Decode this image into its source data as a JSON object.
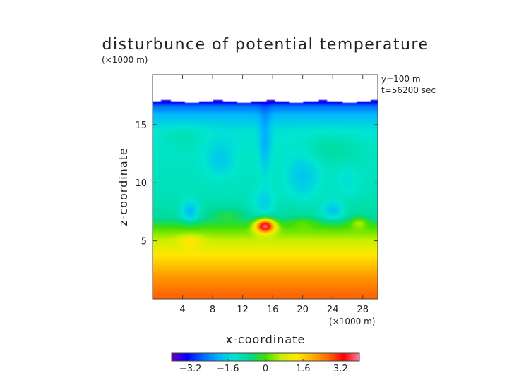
{
  "chart_data": {
    "type": "heatmap",
    "title": "disturbunce of potential temperature",
    "xlabel": "x-coordinate",
    "ylabel": "z-coordinate",
    "x_unit": "(×1000 m)",
    "y_unit": "(×1000 m)",
    "annotations": [
      "y=100 m",
      "t=56200 sec"
    ],
    "xlim": [
      0,
      30
    ],
    "ylim": [
      0,
      19.3
    ],
    "x_ticks": [
      4,
      8,
      12,
      16,
      20,
      24,
      28
    ],
    "y_ticks": [
      5,
      10,
      15
    ],
    "field_top": 17.0,
    "colorbar": {
      "min": -4.0,
      "max": 4.0,
      "ticks": [
        -3.2,
        -1.6,
        0,
        1.6,
        3.2
      ],
      "tick_labels": [
        "−3.2",
        "−1.6",
        "0",
        "1.6",
        "3.2"
      ],
      "colors": [
        "#6a00b0",
        "#0000ff",
        "#0066ff",
        "#00b4ff",
        "#00e6d0",
        "#00d890",
        "#40e000",
        "#c8f000",
        "#ffe800",
        "#ffb000",
        "#ff6a00",
        "#ff0000",
        "#ff80a0"
      ]
    },
    "profile": [
      {
        "z": 0.3,
        "v": 2.7
      },
      {
        "z": 2.0,
        "v": 2.2
      },
      {
        "z": 3.5,
        "v": 1.5
      },
      {
        "z": 5.0,
        "v": 0.7
      },
      {
        "z": 6.0,
        "v": 0.1
      },
      {
        "z": 7.0,
        "v": -0.8
      },
      {
        "z": 9.0,
        "v": -1.1
      },
      {
        "z": 12.0,
        "v": -1.2
      },
      {
        "z": 14.5,
        "v": -1.4
      },
      {
        "z": 15.8,
        "v": -1.9
      },
      {
        "z": 16.6,
        "v": -2.6
      },
      {
        "z": 17.0,
        "v": -3.5
      }
    ],
    "features": [
      {
        "x": 15.0,
        "z": 6.3,
        "rx": 1.3,
        "rz": 0.6,
        "amp": 4.2
      },
      {
        "x": 14.8,
        "z": 8.0,
        "rx": 1.6,
        "rz": 1.4,
        "amp": -0.6
      },
      {
        "x": 5.0,
        "z": 5.0,
        "rx": 1.6,
        "rz": 0.5,
        "amp": 0.7
      },
      {
        "x": 27.5,
        "z": 6.6,
        "rx": 1.2,
        "rz": 0.5,
        "amp": 0.9
      },
      {
        "x": 20.0,
        "z": 6.6,
        "rx": 2.0,
        "rz": 0.5,
        "amp": 0.5
      },
      {
        "x": 10.0,
        "z": 7.2,
        "rx": 2.5,
        "rz": 0.6,
        "amp": 0.5
      },
      {
        "x": 5.0,
        "z": 7.5,
        "rx": 1.2,
        "rz": 0.9,
        "amp": -1.0
      },
      {
        "x": 24.0,
        "z": 7.6,
        "rx": 1.5,
        "rz": 0.8,
        "amp": -0.9
      },
      {
        "x": 15.0,
        "z": 13.5,
        "rx": 0.8,
        "rz": 3.0,
        "amp": -0.7
      },
      {
        "x": 9.0,
        "z": 12.0,
        "rx": 2.0,
        "rz": 1.5,
        "amp": -0.5
      },
      {
        "x": 20.0,
        "z": 10.5,
        "rx": 2.2,
        "rz": 2.0,
        "amp": -0.6
      },
      {
        "x": 26.0,
        "z": 10.0,
        "rx": 1.5,
        "rz": 1.2,
        "amp": -0.3
      },
      {
        "x": 24.0,
        "z": 13.0,
        "rx": 4.0,
        "rz": 1.2,
        "amp": 0.4
      },
      {
        "x": 4.0,
        "z": 14.0,
        "rx": 3.0,
        "rz": 1.0,
        "amp": 0.3
      }
    ]
  }
}
